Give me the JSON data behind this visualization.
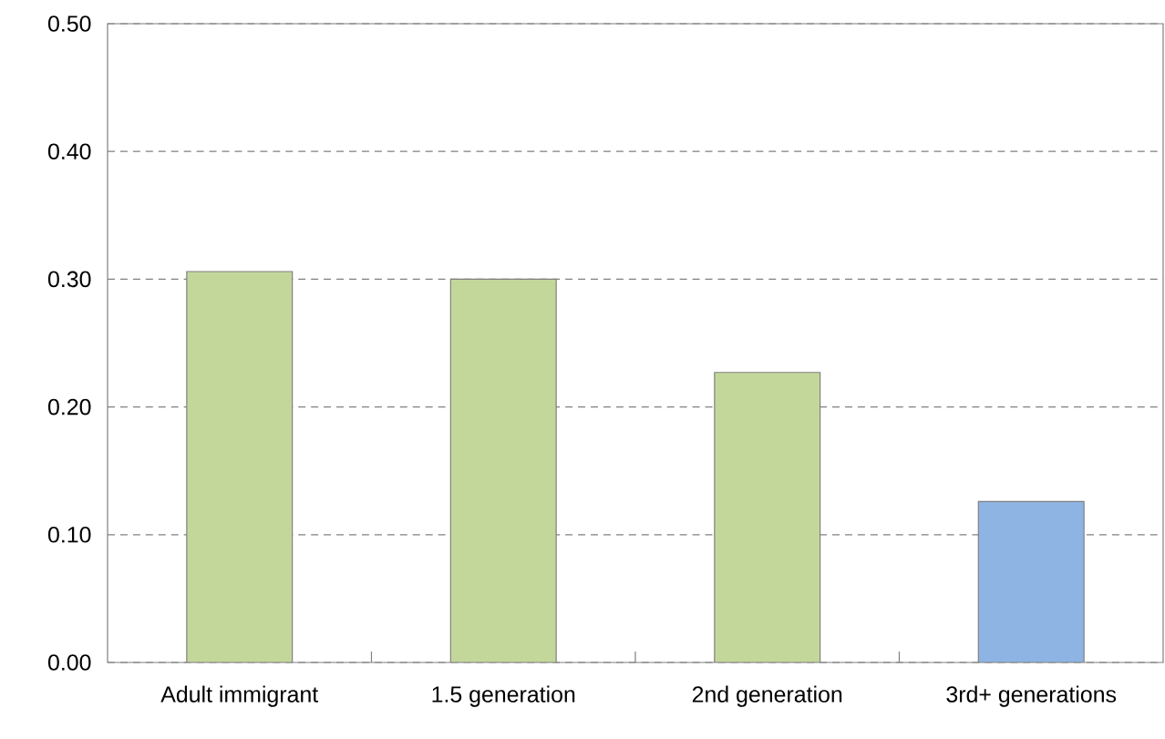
{
  "chart_data": {
    "type": "bar",
    "categories": [
      "Adult immigrant",
      "1.5 generation",
      "2nd generation",
      "3rd+ generations"
    ],
    "values": [
      0.306,
      0.3,
      0.227,
      0.126
    ],
    "colors": [
      "#c4d79b",
      "#c4d79b",
      "#c4d79b",
      "#8eb4e3"
    ],
    "ylim": [
      0,
      0.5
    ],
    "yticks": [
      {
        "value": 0,
        "label": "0.00"
      },
      {
        "value": 0.1,
        "label": "0.10"
      },
      {
        "value": 0.2,
        "label": "0.20"
      },
      {
        "value": 0.3,
        "label": "0.30"
      },
      {
        "value": 0.4,
        "label": "0.40"
      },
      {
        "value": 0.5,
        "label": "0.50"
      }
    ],
    "grid": "y"
  }
}
